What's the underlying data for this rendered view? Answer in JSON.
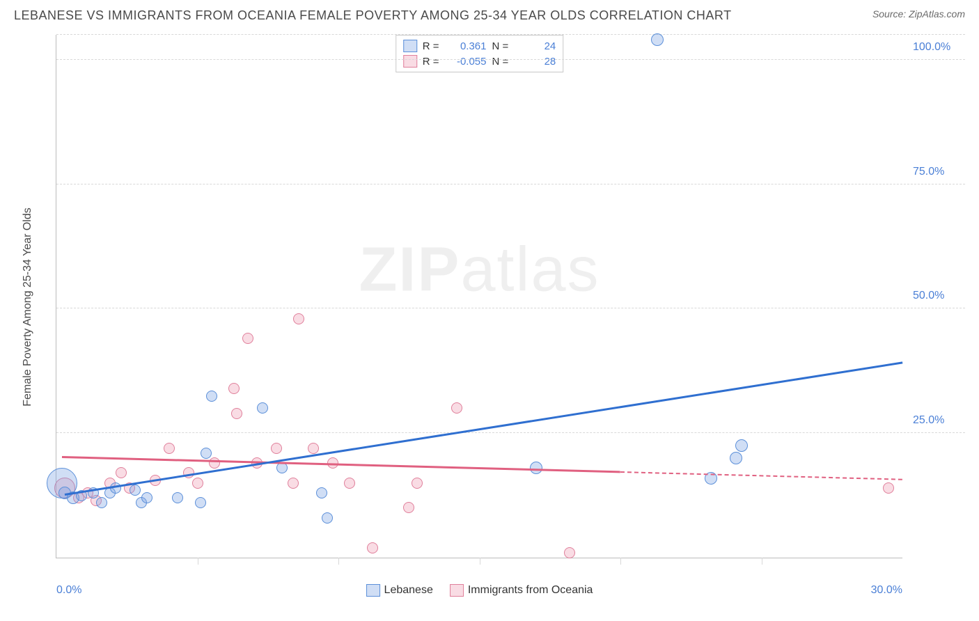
{
  "header": {
    "title": "LEBANESE VS IMMIGRANTS FROM OCEANIA FEMALE POVERTY AMONG 25-34 YEAR OLDS CORRELATION CHART",
    "source_prefix": "Source: ",
    "source_name": "ZipAtlas.com"
  },
  "watermark": {
    "bold": "ZIP",
    "rest": "atlas"
  },
  "chart": {
    "type": "scatter",
    "xlim": [
      0,
      30
    ],
    "ylim": [
      0,
      105
    ],
    "x_ticks_minor": [
      5,
      10,
      15,
      20,
      25
    ],
    "x_ticks_labeled": [
      {
        "v": 0,
        "label": "0.0%",
        "align": "left"
      },
      {
        "v": 30,
        "label": "30.0%",
        "align": "right"
      }
    ],
    "y_gridlines": [
      25,
      50,
      75,
      100,
      105
    ],
    "y_ticks_labeled": [
      {
        "v": 25,
        "label": "25.0%"
      },
      {
        "v": 50,
        "label": "50.0%"
      },
      {
        "v": 75,
        "label": "75.0%"
      },
      {
        "v": 100,
        "label": "100.0%"
      }
    ],
    "y_axis_title": "Female Poverty Among 25-34 Year Olds",
    "background_color": "#ffffff",
    "grid_color": "#d8d8d8",
    "series": {
      "lebanese": {
        "label": "Lebanese",
        "fill": "rgba(120,160,225,0.35)",
        "stroke": "#5b8fd9",
        "line_color": "#2f6fd0",
        "R": "0.361",
        "N": "24",
        "points": [
          {
            "x": 0.2,
            "y": 15,
            "r": 22
          },
          {
            "x": 0.3,
            "y": 13,
            "r": 9
          },
          {
            "x": 0.6,
            "y": 12,
            "r": 9
          },
          {
            "x": 0.9,
            "y": 12.5,
            "r": 8
          },
          {
            "x": 1.3,
            "y": 13,
            "r": 8
          },
          {
            "x": 1.6,
            "y": 11,
            "r": 8
          },
          {
            "x": 1.9,
            "y": 13,
            "r": 8
          },
          {
            "x": 2.1,
            "y": 14,
            "r": 8
          },
          {
            "x": 2.8,
            "y": 13.5,
            "r": 8
          },
          {
            "x": 3.0,
            "y": 11,
            "r": 8
          },
          {
            "x": 3.2,
            "y": 12,
            "r": 8
          },
          {
            "x": 4.3,
            "y": 12,
            "r": 8
          },
          {
            "x": 5.1,
            "y": 11,
            "r": 8
          },
          {
            "x": 5.3,
            "y": 21,
            "r": 8
          },
          {
            "x": 5.5,
            "y": 32.5,
            "r": 8
          },
          {
            "x": 7.3,
            "y": 30,
            "r": 8
          },
          {
            "x": 8.0,
            "y": 18,
            "r": 8
          },
          {
            "x": 9.4,
            "y": 13,
            "r": 8
          },
          {
            "x": 9.6,
            "y": 8,
            "r": 8
          },
          {
            "x": 17.0,
            "y": 18,
            "r": 9
          },
          {
            "x": 21.3,
            "y": 104,
            "r": 9
          },
          {
            "x": 23.2,
            "y": 16,
            "r": 9
          },
          {
            "x": 24.1,
            "y": 20,
            "r": 9
          },
          {
            "x": 24.3,
            "y": 22.5,
            "r": 9
          }
        ],
        "trend": {
          "x1": 0.3,
          "y1": 12.5,
          "x2": 30,
          "y2": 39
        }
      },
      "oceania": {
        "label": "Immigrants from Oceania",
        "fill": "rgba(235,140,165,0.30)",
        "stroke": "#e07f9b",
        "line_color": "#e06080",
        "R": "-0.055",
        "N": "28",
        "points": [
          {
            "x": 0.3,
            "y": 14,
            "r": 15
          },
          {
            "x": 0.8,
            "y": 12,
            "r": 8
          },
          {
            "x": 1.1,
            "y": 13,
            "r": 8
          },
          {
            "x": 1.4,
            "y": 11.5,
            "r": 8
          },
          {
            "x": 1.9,
            "y": 15,
            "r": 8
          },
          {
            "x": 2.3,
            "y": 17,
            "r": 8
          },
          {
            "x": 2.6,
            "y": 14,
            "r": 8
          },
          {
            "x": 3.5,
            "y": 15.5,
            "r": 8
          },
          {
            "x": 4.0,
            "y": 22,
            "r": 8
          },
          {
            "x": 4.7,
            "y": 17,
            "r": 8
          },
          {
            "x": 5.0,
            "y": 15,
            "r": 8
          },
          {
            "x": 5.6,
            "y": 19,
            "r": 8
          },
          {
            "x": 6.3,
            "y": 34,
            "r": 8
          },
          {
            "x": 6.4,
            "y": 29,
            "r": 8
          },
          {
            "x": 6.8,
            "y": 44,
            "r": 8
          },
          {
            "x": 7.1,
            "y": 19,
            "r": 8
          },
          {
            "x": 7.8,
            "y": 22,
            "r": 8
          },
          {
            "x": 8.4,
            "y": 15,
            "r": 8
          },
          {
            "x": 8.6,
            "y": 48,
            "r": 8
          },
          {
            "x": 9.1,
            "y": 22,
            "r": 8
          },
          {
            "x": 9.8,
            "y": 19,
            "r": 8
          },
          {
            "x": 10.4,
            "y": 15,
            "r": 8
          },
          {
            "x": 11.2,
            "y": 2,
            "r": 8
          },
          {
            "x": 12.5,
            "y": 10,
            "r": 8
          },
          {
            "x": 12.8,
            "y": 15,
            "r": 8
          },
          {
            "x": 14.2,
            "y": 30,
            "r": 8
          },
          {
            "x": 18.2,
            "y": 1,
            "r": 8
          },
          {
            "x": 29.5,
            "y": 14,
            "r": 8
          }
        ],
        "trend_solid": {
          "x1": 0.2,
          "y1": 20,
          "x2": 20,
          "y2": 17
        },
        "trend_dash": {
          "x1": 20,
          "y1": 17,
          "x2": 30,
          "y2": 15.5
        }
      }
    },
    "stats_labels": {
      "R": "R =",
      "N": "N ="
    }
  },
  "legend": {
    "items": [
      {
        "key": "lebanese"
      },
      {
        "key": "oceania"
      }
    ]
  }
}
